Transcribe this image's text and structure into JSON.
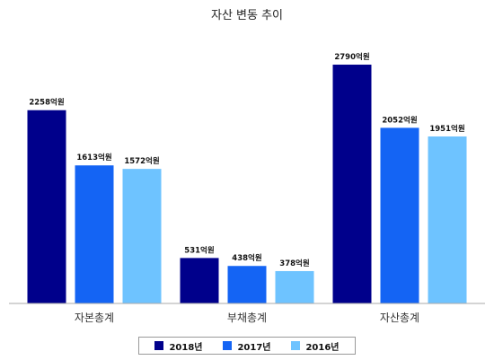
{
  "chart_data": {
    "type": "bar",
    "title": "자산 변동 추이",
    "categories": [
      "자본총계",
      "부채총계",
      "자산총계"
    ],
    "value_suffix": "억원",
    "ylim": [
      0,
      3000
    ],
    "grid": false,
    "legend_position": "bottom",
    "series": [
      {
        "name": "2018년",
        "color": "#00008b",
        "values": [
          2258,
          531,
          2790
        ]
      },
      {
        "name": "2017년",
        "color": "#1464f4",
        "values": [
          1613,
          438,
          2052
        ]
      },
      {
        "name": "2016년",
        "color": "#6ec3ff",
        "values": [
          1572,
          378,
          1951
        ]
      }
    ]
  }
}
